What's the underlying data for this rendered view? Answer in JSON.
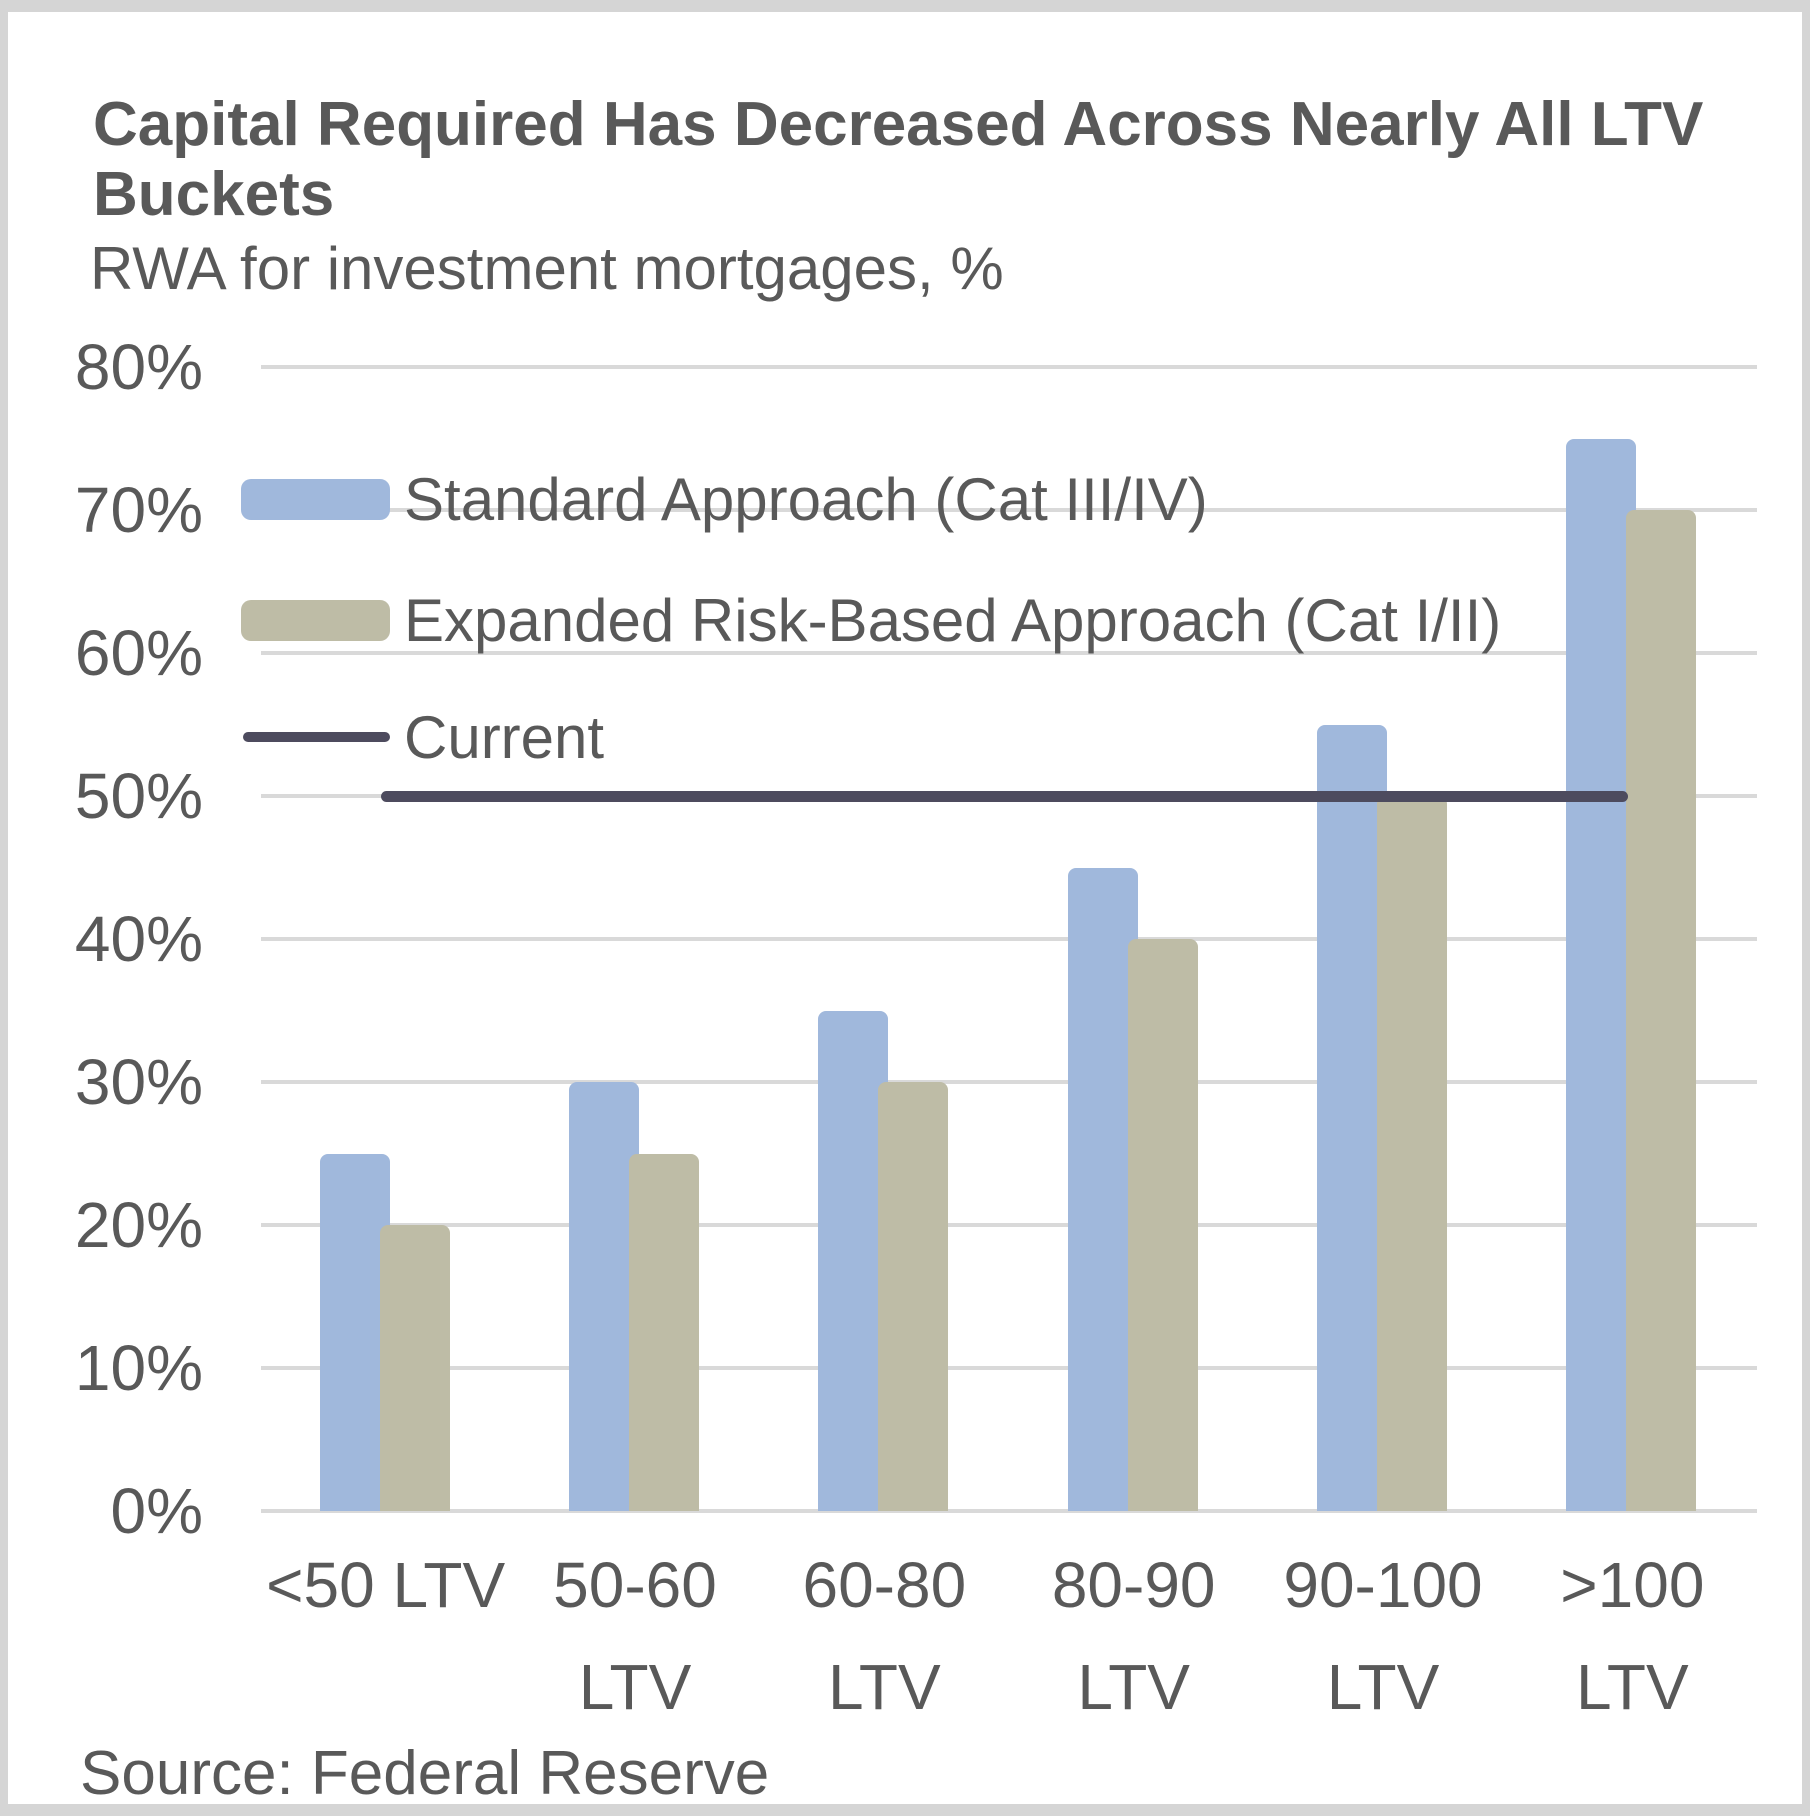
{
  "window": {
    "background": "#ffffff",
    "frame_color": "#d5d5d5"
  },
  "header": {
    "title": "Capital Required Has Decreased Across Nearly All LTV Buckets",
    "subtitle": "RWA for investment mortgages, %"
  },
  "source_note": "Source: Federal Reserve",
  "colors": {
    "standard_bar": "#a0b8dc",
    "expanded_bar": "#bebca6",
    "current_line": "#4d4b5e",
    "gridline": "#d9d9d9",
    "text": "#595959"
  },
  "chart_data": {
    "type": "bar",
    "title": "Capital Required Has Decreased Across Nearly All LTV Buckets",
    "subtitle": "RWA for investment mortgages, %",
    "categories": [
      "<50 LTV",
      "50-60\nLTV",
      "60-80\nLTV",
      "80-90\nLTV",
      "90-100\nLTV",
      ">100\nLTV"
    ],
    "series": [
      {
        "name": "Standard Approach (Cat III/IV)",
        "type": "bar",
        "color": "#a0b8dc",
        "values": [
          25,
          30,
          35,
          45,
          55,
          75
        ]
      },
      {
        "name": "Expanded Risk-Based Approach (Cat I/II)",
        "type": "bar",
        "color": "#bebca6",
        "values": [
          20,
          25,
          30,
          40,
          50,
          70
        ]
      },
      {
        "name": "Current",
        "type": "line",
        "color": "#4d4b5e",
        "values": [
          50,
          50,
          50,
          50,
          50,
          50
        ]
      }
    ],
    "ylabel": "",
    "xlabel": "",
    "ylim": [
      0,
      80
    ],
    "ytick_step": 10,
    "ytick_format": "percent",
    "grid": true,
    "legend_position": "upper-left-inside",
    "source": "Source: Federal Reserve"
  }
}
